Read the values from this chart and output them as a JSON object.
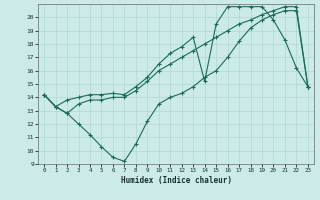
{
  "background_color": "#cceae8",
  "grid_color": "#aed8d5",
  "line_color": "#1a6b5a",
  "xlabel": "Humidex (Indice chaleur)",
  "xlim": [
    -0.5,
    23.5
  ],
  "ylim": [
    9,
    21
  ],
  "yticks": [
    9,
    10,
    11,
    12,
    13,
    14,
    15,
    16,
    17,
    18,
    19,
    20
  ],
  "xticks": [
    0,
    1,
    2,
    3,
    4,
    5,
    6,
    7,
    8,
    9,
    10,
    11,
    12,
    13,
    14,
    15,
    16,
    17,
    18,
    19,
    20,
    21,
    22,
    23
  ],
  "line1_x": [
    0,
    1,
    2,
    3,
    4,
    5,
    6,
    7,
    8,
    9,
    10,
    11,
    12,
    13,
    14,
    15,
    16,
    17,
    18,
    19,
    20,
    21,
    22,
    23
  ],
  "line1_y": [
    14.2,
    13.3,
    12.8,
    12.0,
    11.2,
    10.3,
    9.5,
    9.2,
    10.5,
    12.2,
    13.5,
    14.0,
    14.3,
    14.8,
    15.5,
    16.0,
    17.0,
    18.2,
    19.2,
    19.8,
    20.2,
    20.5,
    20.5,
    14.8
  ],
  "line2_x": [
    0,
    1,
    2,
    3,
    4,
    5,
    6,
    7,
    8,
    9,
    10,
    11,
    12,
    13,
    14,
    15,
    16,
    17,
    18,
    19,
    20,
    21,
    22,
    23
  ],
  "line2_y": [
    14.2,
    13.3,
    12.8,
    13.5,
    13.8,
    13.8,
    14.0,
    14.0,
    14.5,
    15.2,
    16.0,
    16.5,
    17.0,
    17.5,
    18.0,
    18.5,
    19.0,
    19.5,
    19.8,
    20.2,
    20.5,
    20.8,
    20.8,
    14.8
  ],
  "line3_x": [
    0,
    1,
    2,
    3,
    4,
    5,
    6,
    7,
    8,
    9,
    10,
    11,
    12,
    13,
    14,
    15,
    16,
    17,
    18,
    19,
    20,
    21,
    22,
    23
  ],
  "line3_y": [
    14.2,
    13.3,
    13.8,
    14.0,
    14.2,
    14.2,
    14.3,
    14.2,
    14.8,
    15.5,
    16.5,
    17.3,
    17.8,
    18.5,
    15.2,
    19.5,
    20.8,
    20.8,
    20.8,
    20.8,
    19.8,
    18.3,
    16.2,
    14.8
  ]
}
